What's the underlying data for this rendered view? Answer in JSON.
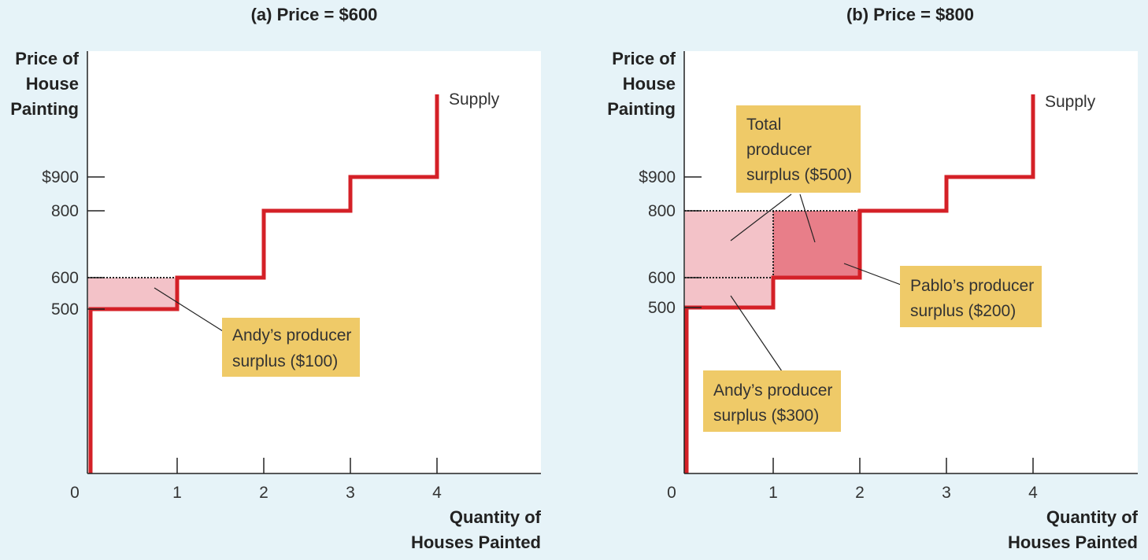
{
  "chart_data": [
    {
      "type": "step",
      "title": "(a) Price = $600",
      "ylabel": [
        "Price of",
        "House",
        "Painting"
      ],
      "xlabel": [
        "Quantity of",
        "Houses Painted"
      ],
      "y_ticks": [
        {
          "value": 900,
          "label": "$900"
        },
        {
          "value": 800,
          "label": "800"
        },
        {
          "value": 600,
          "label": "600"
        },
        {
          "value": 500,
          "label": "500"
        }
      ],
      "x_ticks": [
        {
          "value": 0,
          "label": "0"
        },
        {
          "value": 1,
          "label": "1"
        },
        {
          "value": 2,
          "label": "2"
        },
        {
          "value": 3,
          "label": "3"
        },
        {
          "value": 4,
          "label": "4"
        }
      ],
      "supply_label": "Supply",
      "supply_steps": [
        {
          "from": 0,
          "to": 1,
          "price": 500
        },
        {
          "from": 1,
          "to": 2,
          "price": 600
        },
        {
          "from": 2,
          "to": 3,
          "price": 800
        },
        {
          "from": 3,
          "to": 4,
          "price": 900
        }
      ],
      "market_price": 600,
      "surplus_areas": [
        {
          "from": 0,
          "to": 1,
          "low": 500,
          "high": 600,
          "shade": "light"
        }
      ],
      "callouts": [
        {
          "lines": [
            "Andy’s producer",
            "surplus ($100)"
          ]
        }
      ]
    },
    {
      "type": "step",
      "title": "(b) Price = $800",
      "ylabel": [
        "Price of",
        "House",
        "Painting"
      ],
      "xlabel": [
        "Quantity of",
        "Houses Painted"
      ],
      "y_ticks": [
        {
          "value": 900,
          "label": "$900"
        },
        {
          "value": 800,
          "label": "800"
        },
        {
          "value": 600,
          "label": "600"
        },
        {
          "value": 500,
          "label": "500"
        }
      ],
      "x_ticks": [
        {
          "value": 0,
          "label": "0"
        },
        {
          "value": 1,
          "label": "1"
        },
        {
          "value": 2,
          "label": "2"
        },
        {
          "value": 3,
          "label": "3"
        },
        {
          "value": 4,
          "label": "4"
        }
      ],
      "supply_label": "Supply",
      "supply_steps": [
        {
          "from": 0,
          "to": 1,
          "price": 500
        },
        {
          "from": 1,
          "to": 2,
          "price": 600
        },
        {
          "from": 2,
          "to": 3,
          "price": 800
        },
        {
          "from": 3,
          "to": 4,
          "price": 900
        }
      ],
      "market_price": 800,
      "surplus_areas": [
        {
          "from": 0,
          "to": 1,
          "low": 500,
          "high": 800,
          "shade": "light"
        },
        {
          "from": 1,
          "to": 2,
          "low": 600,
          "high": 800,
          "shade": "dark"
        }
      ],
      "callouts": [
        {
          "lines": [
            "Total",
            "producer",
            "surplus ($500)"
          ]
        },
        {
          "lines": [
            "Pablo’s producer",
            "surplus ($200)"
          ]
        },
        {
          "lines": [
            "Andy’s producer",
            "surplus ($300)"
          ]
        }
      ]
    }
  ],
  "colors": {
    "background": "#e6f3f8",
    "plot": "#ffffff",
    "supply": "#d42027",
    "surplus_light": "#f3c2c8",
    "surplus_dark": "#e87e89",
    "callout": "#efca68"
  }
}
